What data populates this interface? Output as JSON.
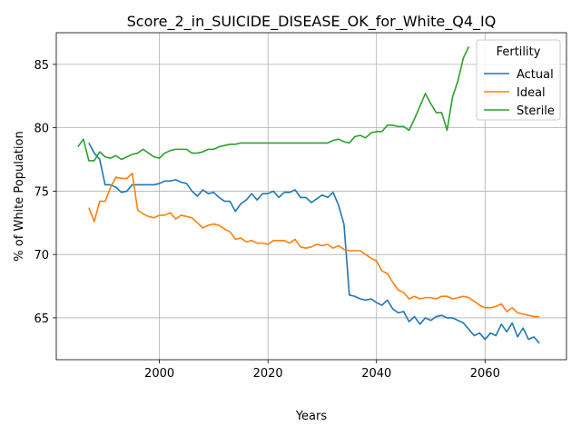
{
  "chart_data": {
    "type": "line",
    "title": "Score_2_in_SUICIDE_DISEASE_OK_for_White_Q4_IQ",
    "xlabel": "Years",
    "ylabel": "% of White Population",
    "xlim": [
      1981,
      2075
    ],
    "ylim": [
      61.7,
      87.5
    ],
    "xticks": [
      2000,
      2020,
      2040,
      2060
    ],
    "yticks": [
      65,
      70,
      75,
      80,
      85
    ],
    "grid": true,
    "legend": {
      "title": "Fertility",
      "position": "top-right"
    },
    "series": [
      {
        "name": "Actual",
        "color": "#1f77b4",
        "x": [
          1987,
          1988,
          1989,
          1990,
          1991,
          1992,
          1993,
          1994,
          1995,
          1996,
          1997,
          1998,
          1999,
          2000,
          2001,
          2002,
          2003,
          2004,
          2005,
          2006,
          2007,
          2008,
          2009,
          2010,
          2011,
          2012,
          2013,
          2014,
          2015,
          2016,
          2017,
          2018,
          2019,
          2020,
          2021,
          2022,
          2023,
          2024,
          2025,
          2026,
          2027,
          2028,
          2029,
          2030,
          2031,
          2032,
          2033,
          2034,
          2035,
          2036,
          2037,
          2038,
          2039,
          2040,
          2041,
          2042,
          2043,
          2044,
          2045,
          2046,
          2047,
          2048,
          2049,
          2050,
          2051,
          2052,
          2053,
          2054,
          2055,
          2056,
          2057,
          2058,
          2059,
          2060,
          2061,
          2062,
          2063,
          2064,
          2065,
          2066,
          2067,
          2068,
          2069,
          2070
        ],
        "y": [
          78.8,
          78.0,
          77.5,
          75.5,
          75.5,
          75.3,
          74.9,
          75.0,
          75.5,
          75.5,
          75.5,
          75.5,
          75.5,
          75.6,
          75.8,
          75.8,
          75.9,
          75.7,
          75.6,
          75.0,
          74.6,
          75.1,
          74.8,
          74.9,
          74.5,
          74.2,
          74.2,
          73.4,
          74.0,
          74.3,
          74.8,
          74.3,
          74.8,
          74.8,
          75.0,
          74.5,
          74.9,
          74.9,
          75.1,
          74.5,
          74.5,
          74.1,
          74.4,
          74.7,
          74.5,
          74.9,
          73.9,
          72.4,
          66.8,
          66.7,
          66.5,
          66.4,
          66.5,
          66.2,
          66.0,
          66.4,
          65.7,
          65.4,
          65.5,
          64.7,
          65.1,
          64.5,
          65.0,
          64.8,
          65.1,
          65.2,
          65.0,
          65.0,
          64.8,
          64.6,
          64.1,
          63.6,
          63.8,
          63.3,
          63.8,
          63.6,
          64.5,
          63.9,
          64.6,
          63.5,
          64.2,
          63.3,
          63.5,
          63.0
        ]
      },
      {
        "name": "Ideal",
        "color": "#ff7f0e",
        "x": [
          1987,
          1988,
          1989,
          1990,
          1991,
          1992,
          1993,
          1994,
          1995,
          1996,
          1997,
          1998,
          1999,
          2000,
          2001,
          2002,
          2003,
          2004,
          2005,
          2006,
          2007,
          2008,
          2009,
          2010,
          2011,
          2012,
          2013,
          2014,
          2015,
          2016,
          2017,
          2018,
          2019,
          2020,
          2021,
          2022,
          2023,
          2024,
          2025,
          2026,
          2027,
          2028,
          2029,
          2030,
          2031,
          2032,
          2033,
          2034,
          2035,
          2036,
          2037,
          2038,
          2039,
          2040,
          2041,
          2042,
          2043,
          2044,
          2045,
          2046,
          2047,
          2048,
          2049,
          2050,
          2051,
          2052,
          2053,
          2054,
          2055,
          2056,
          2057,
          2058,
          2059,
          2060,
          2061,
          2062,
          2063,
          2064,
          2065,
          2066,
          2067,
          2068,
          2069,
          2070
        ],
        "y": [
          73.7,
          72.6,
          74.2,
          74.2,
          75.3,
          76.1,
          76.0,
          76.0,
          76.4,
          73.5,
          73.2,
          73.0,
          72.9,
          73.1,
          73.1,
          73.3,
          72.8,
          73.1,
          73.0,
          72.9,
          72.5,
          72.1,
          72.3,
          72.4,
          72.3,
          72.0,
          71.8,
          71.2,
          71.3,
          71.0,
          71.1,
          70.9,
          70.9,
          70.8,
          71.1,
          71.1,
          71.1,
          70.9,
          71.2,
          70.6,
          70.5,
          70.6,
          70.8,
          70.7,
          70.8,
          70.5,
          70.7,
          70.4,
          70.3,
          70.3,
          70.3,
          70.0,
          69.7,
          69.5,
          68.7,
          68.5,
          67.8,
          67.2,
          67.0,
          66.5,
          66.7,
          66.5,
          66.6,
          66.6,
          66.5,
          66.7,
          66.7,
          66.5,
          66.6,
          66.7,
          66.6,
          66.3,
          66.0,
          65.8,
          65.8,
          65.9,
          66.1,
          65.5,
          65.8,
          65.4,
          65.3,
          65.2,
          65.1,
          65.1
        ]
      },
      {
        "name": "Sterile",
        "color": "#2ca02c",
        "x": [
          1985,
          1986,
          1987,
          1988,
          1989,
          1990,
          1991,
          1992,
          1993,
          1994,
          1995,
          1996,
          1997,
          1998,
          1999,
          2000,
          2001,
          2002,
          2003,
          2004,
          2005,
          2006,
          2007,
          2008,
          2009,
          2010,
          2011,
          2012,
          2013,
          2014,
          2015,
          2016,
          2017,
          2018,
          2019,
          2020,
          2021,
          2022,
          2023,
          2024,
          2025,
          2026,
          2027,
          2028,
          2029,
          2030,
          2031,
          2032,
          2033,
          2034,
          2035,
          2036,
          2037,
          2038,
          2039,
          2040,
          2041,
          2042,
          2043,
          2044,
          2045,
          2046,
          2047,
          2048,
          2049,
          2050,
          2051,
          2052,
          2053,
          2054,
          2055,
          2056,
          2057
        ],
        "y": [
          78.5,
          79.1,
          77.4,
          77.4,
          78.1,
          77.7,
          77.6,
          77.8,
          77.5,
          77.7,
          77.9,
          78.0,
          78.3,
          78.0,
          77.7,
          77.6,
          78.0,
          78.2,
          78.3,
          78.3,
          78.3,
          78.0,
          78.0,
          78.1,
          78.3,
          78.3,
          78.5,
          78.6,
          78.7,
          78.7,
          78.8,
          78.8,
          78.8,
          78.8,
          78.8,
          78.8,
          78.8,
          78.8,
          78.8,
          78.8,
          78.8,
          78.8,
          78.8,
          78.8,
          78.8,
          78.8,
          78.8,
          79.0,
          79.1,
          78.9,
          78.8,
          79.3,
          79.4,
          79.2,
          79.6,
          79.7,
          79.7,
          80.2,
          80.2,
          80.1,
          80.1,
          79.8,
          80.7,
          81.7,
          82.7,
          81.9,
          81.2,
          81.2,
          79.8,
          82.4,
          83.7,
          85.5,
          86.4
        ]
      }
    ]
  }
}
